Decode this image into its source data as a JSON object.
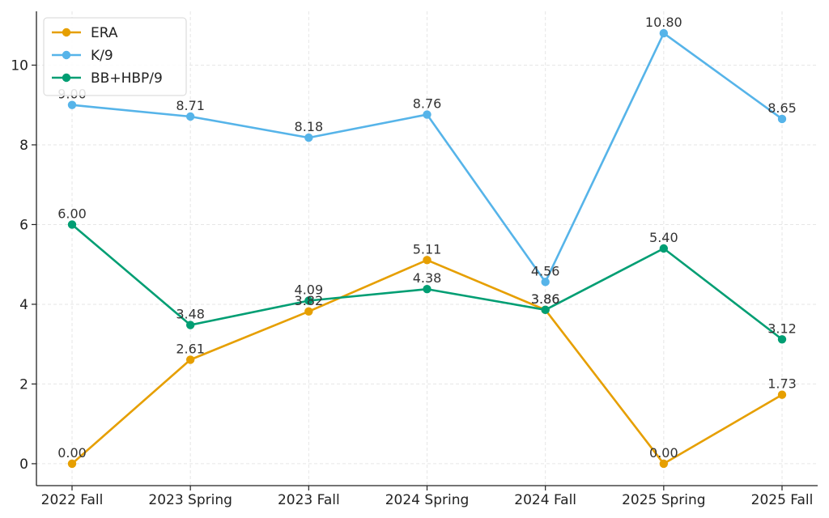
{
  "chart_data": {
    "type": "line",
    "title": "",
    "xlabel": "",
    "ylabel": "",
    "categories": [
      "2022 Fall",
      "2023 Spring",
      "2023 Fall",
      "2024 Spring",
      "2024 Fall",
      "2025 Spring",
      "2025 Fall"
    ],
    "ylim": [
      -0.55,
      11.35
    ],
    "yticks": [
      0,
      2,
      4,
      6,
      8,
      10
    ],
    "grid": true,
    "legend_position": "top-left",
    "series": [
      {
        "name": "ERA",
        "color": "#E69F00",
        "values": [
          0.0,
          2.61,
          3.82,
          5.11,
          3.86,
          0.0,
          1.73
        ],
        "labels": [
          "0.00",
          "2.61",
          "3.82",
          "5.11",
          "3.86",
          "0.00",
          "1.73"
        ]
      },
      {
        "name": "K/9",
        "color": "#56B4E9",
        "values": [
          9.0,
          8.71,
          8.18,
          8.76,
          4.56,
          10.8,
          8.65
        ],
        "labels": [
          "9.00",
          "8.71",
          "8.18",
          "8.76",
          "4.56",
          "10.80",
          "8.65"
        ]
      },
      {
        "name": "BB+HBP/9",
        "color": "#009E73",
        "values": [
          6.0,
          3.48,
          4.09,
          4.38,
          3.86,
          5.4,
          3.12
        ],
        "labels": [
          "6.00",
          "3.48",
          "4.09",
          "4.38",
          "3.86",
          "5.40",
          "3.12"
        ]
      }
    ]
  }
}
